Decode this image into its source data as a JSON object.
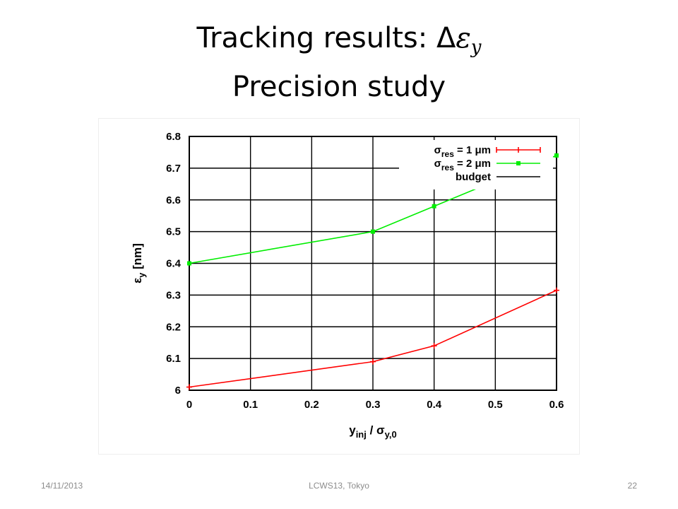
{
  "slide": {
    "title_line1_text": "Tracking results: Δ",
    "title_line1_math": "ε",
    "title_line1_sub": "y",
    "title_line2": "Precision study"
  },
  "footer": {
    "date": "14/11/2013",
    "conference": "LCWS13, Tokyo",
    "page": "22"
  },
  "chart_data": {
    "type": "line",
    "xlabel": "y_inj / σ_y,0",
    "ylabel": "ε_y [nm]",
    "xlim": [
      0,
      0.6
    ],
    "ylim": [
      6.0,
      6.8
    ],
    "xticks": [
      "0",
      "0.1",
      "0.2",
      "0.3",
      "0.4",
      "0.5",
      "0.6"
    ],
    "yticks": [
      "6",
      "6.1",
      "6.2",
      "6.3",
      "6.4",
      "6.5",
      "6.6",
      "6.7",
      "6.8"
    ],
    "grid": true,
    "legend_position": "top-right",
    "series": [
      {
        "name": "σres = 1 μm",
        "color": "#ff0000",
        "x": [
          0,
          0.3,
          0.4,
          0.6
        ],
        "y": [
          6.01,
          6.09,
          6.14,
          6.315
        ]
      },
      {
        "name": "σres = 2 μm",
        "color": "#00ee00",
        "x": [
          0,
          0.3,
          0.4,
          0.6
        ],
        "y": [
          6.4,
          6.5,
          6.58,
          6.74
        ]
      },
      {
        "name": "budget",
        "color": "#000000",
        "x": [],
        "y": []
      }
    ]
  }
}
